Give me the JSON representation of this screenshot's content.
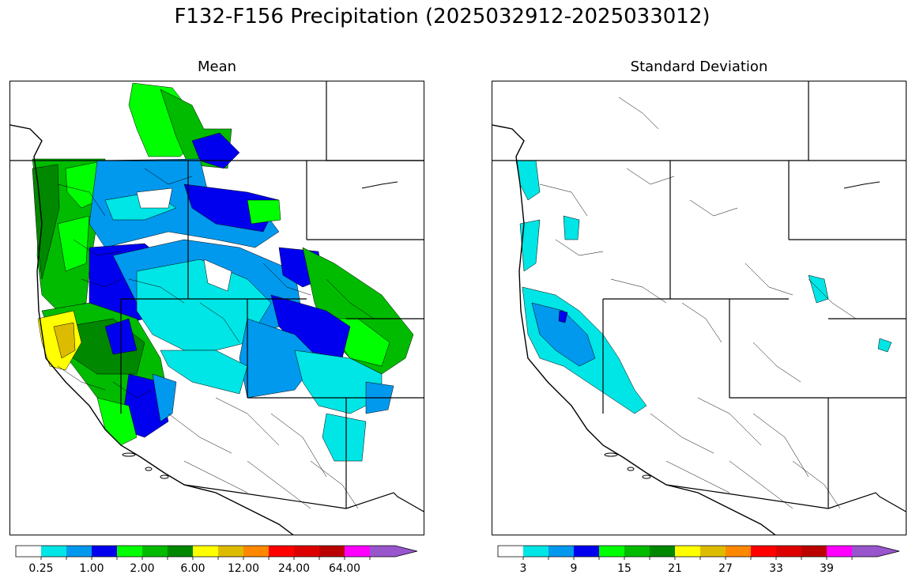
{
  "figure": {
    "title": "F132-F156 Precipitation (2025032912-2025033012)"
  },
  "panels": [
    {
      "title": "Mean",
      "colorbar": {
        "colors": [
          "#ffffff",
          "#00e5e5",
          "#0099ee",
          "#0000ee",
          "#00ff00",
          "#00bb00",
          "#008800",
          "#ffff00",
          "#ddbb00",
          "#ff8800",
          "#ff0000",
          "#dd0000",
          "#bb0000",
          "#ff00ff",
          "#9955cc"
        ],
        "tick_labels": [
          "0.25",
          "1.00",
          "2.00",
          "6.00",
          "12.00",
          "24.00",
          "64.00"
        ],
        "extend": "max"
      }
    },
    {
      "title": "Standard Deviation",
      "colorbar": {
        "colors": [
          "#ffffff",
          "#00e5e5",
          "#0099ee",
          "#0000ee",
          "#00ff00",
          "#00bb00",
          "#008800",
          "#ffff00",
          "#ddbb00",
          "#ff8800",
          "#ff0000",
          "#dd0000",
          "#bb0000",
          "#ff00ff",
          "#9955cc"
        ],
        "tick_labels": [
          "3",
          "9",
          "15",
          "21",
          "27",
          "33",
          "39"
        ],
        "extend": "max"
      }
    }
  ]
}
